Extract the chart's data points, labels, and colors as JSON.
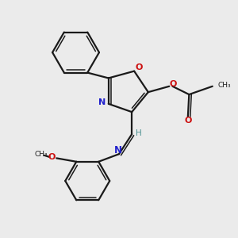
{
  "background_color": "#ebebeb",
  "bond_color": "#1a1a1a",
  "N_color": "#2020cc",
  "O_color": "#cc1010",
  "H_color": "#4a9090",
  "figsize": [
    3.0,
    3.0
  ],
  "dpi": 100,
  "xlim": [
    0,
    10
  ],
  "ylim": [
    0,
    10
  ]
}
